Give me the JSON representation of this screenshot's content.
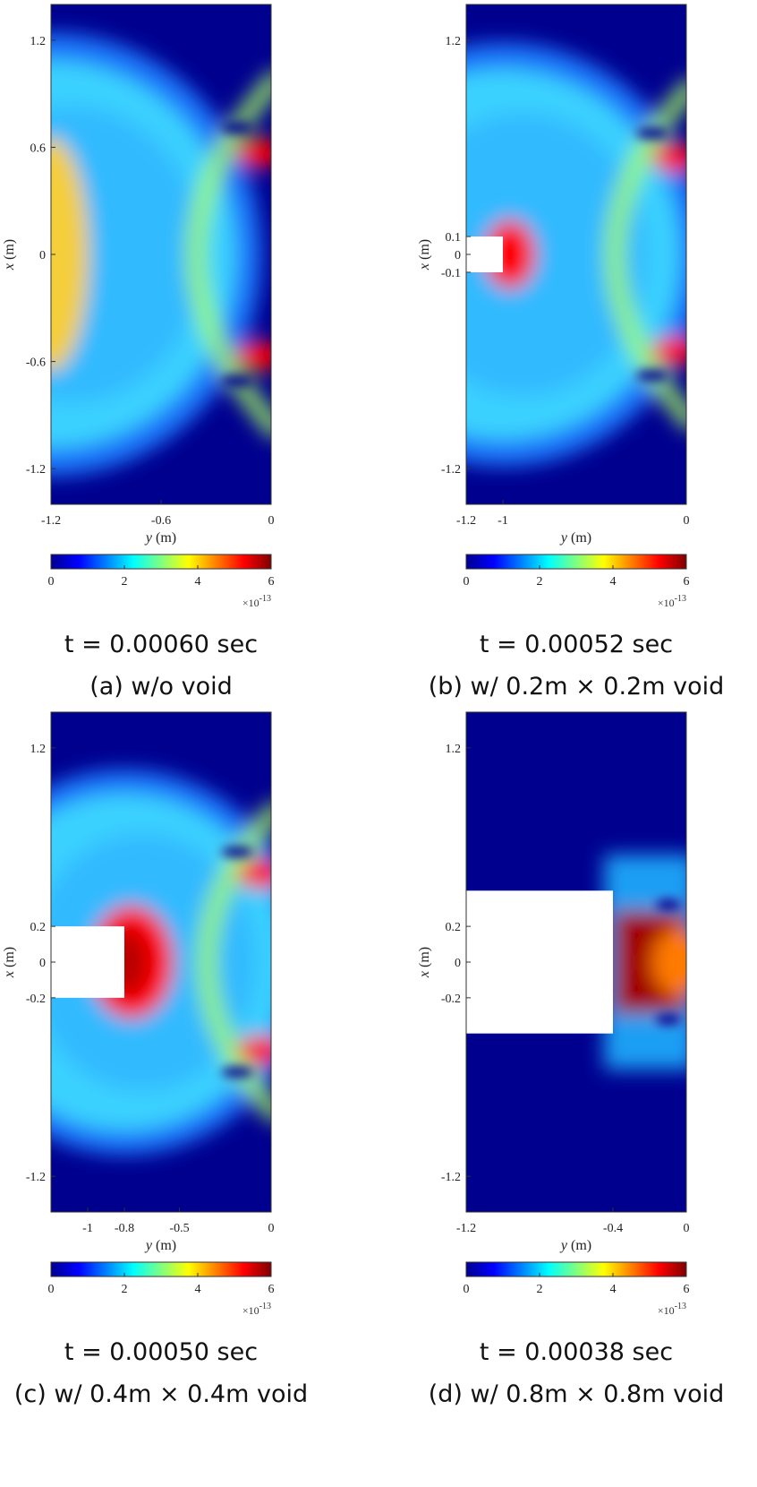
{
  "figure": {
    "colormap": "jet",
    "colors": {
      "deep_blue": "#00008f",
      "cyan": "#00ffff",
      "yellow": "#ffff00",
      "red": "#ff0000",
      "dark_red": "#800000"
    }
  },
  "chart_data": [
    {
      "type": "heatmap",
      "title": "",
      "time_label": "t = 0.00060 sec",
      "caption": "(a) w/o void",
      "xlabel_var": "y",
      "xlabel_unit": " (m)",
      "ylabel_var": "x",
      "ylabel_unit": " (m)",
      "xlim": [
        -1.2,
        0
      ],
      "ylim": [
        -1.4,
        1.4
      ],
      "x_ticks": [
        {
          "value": -1.2,
          "label": "-1.2"
        },
        {
          "value": -0.6,
          "label": "-0.6"
        },
        {
          "value": 0,
          "label": "0"
        }
      ],
      "y_ticks": [
        {
          "value": 1.2,
          "label": "1.2"
        },
        {
          "value": 0.6,
          "label": "0.6"
        },
        {
          "value": 0,
          "label": "0"
        },
        {
          "value": -0.6,
          "label": "-0.6"
        },
        {
          "value": -1.2,
          "label": "-1.2"
        }
      ],
      "void": null,
      "wave_front_radius": 1.15,
      "colorbar": {
        "min": 0,
        "max": 6,
        "ticks": [
          "0",
          "2",
          "4",
          "6"
        ],
        "scale_base": "×10",
        "scale_exp": "-13"
      }
    },
    {
      "type": "heatmap",
      "title": "",
      "time_label": "t = 0.00052 sec",
      "caption": "(b) w/ 0.2m × 0.2m void",
      "xlabel_var": "y",
      "xlabel_unit": " (m)",
      "ylabel_var": "x",
      "ylabel_unit": " (m)",
      "xlim": [
        -1.2,
        0
      ],
      "ylim": [
        -1.4,
        1.4
      ],
      "x_ticks": [
        {
          "value": -1.2,
          "label": "-1.2"
        },
        {
          "value": -1,
          "label": "-1"
        },
        {
          "value": 0,
          "label": "0"
        }
      ],
      "y_ticks": [
        {
          "value": 1.2,
          "label": "1.2"
        },
        {
          "value": 0.1,
          "label": "0.1"
        },
        {
          "value": 0,
          "label": "0"
        },
        {
          "value": -0.1,
          "label": "-0.1"
        },
        {
          "value": -1.2,
          "label": "-1.2"
        }
      ],
      "void": {
        "y_min": -1.2,
        "y_max": -1.0,
        "x_min": -0.1,
        "x_max": 0.1
      },
      "wave_front_radius": 1.1,
      "colorbar": {
        "min": 0,
        "max": 6,
        "ticks": [
          "0",
          "2",
          "4",
          "6"
        ],
        "scale_base": "×10",
        "scale_exp": "-13"
      }
    },
    {
      "type": "heatmap",
      "title": "",
      "time_label": "t = 0.00050 sec",
      "caption": "(c) w/ 0.4m × 0.4m void",
      "xlabel_var": "y",
      "xlabel_unit": " (m)",
      "ylabel_var": "x",
      "ylabel_unit": " (m)",
      "xlim": [
        -1.2,
        0
      ],
      "ylim": [
        -1.4,
        1.4
      ],
      "x_ticks": [
        {
          "value": -1,
          "label": "-1"
        },
        {
          "value": -0.8,
          "label": "-0.8"
        },
        {
          "value": -0.5,
          "label": "-0.5"
        },
        {
          "value": 0,
          "label": "0"
        }
      ],
      "y_ticks": [
        {
          "value": 1.2,
          "label": "1.2"
        },
        {
          "value": 0.2,
          "label": "0.2"
        },
        {
          "value": 0,
          "label": "0"
        },
        {
          "value": -0.2,
          "label": "-0.2"
        },
        {
          "value": -1.2,
          "label": "-1.2"
        }
      ],
      "void": {
        "y_min": -1.2,
        "y_max": -0.8,
        "x_min": -0.2,
        "x_max": 0.2
      },
      "wave_front_radius": 1.0,
      "colorbar": {
        "min": 0,
        "max": 6,
        "ticks": [
          "0",
          "2",
          "4",
          "6"
        ],
        "scale_base": "×10",
        "scale_exp": "-13"
      }
    },
    {
      "type": "heatmap",
      "title": "",
      "time_label": "t = 0.00038 sec",
      "caption": "(d) w/ 0.8m × 0.8m void",
      "xlabel_var": "y",
      "xlabel_unit": " (m)",
      "ylabel_var": "x",
      "ylabel_unit": " (m)",
      "xlim": [
        -1.2,
        0
      ],
      "ylim": [
        -1.4,
        1.4
      ],
      "x_ticks": [
        {
          "value": -1.2,
          "label": "-1.2"
        },
        {
          "value": -0.4,
          "label": "-0.4"
        },
        {
          "value": 0,
          "label": "0"
        }
      ],
      "y_ticks": [
        {
          "value": 1.2,
          "label": "1.2"
        },
        {
          "value": 0.2,
          "label": "0.2"
        },
        {
          "value": 0,
          "label": "0"
        },
        {
          "value": -0.2,
          "label": "-0.2"
        },
        {
          "value": -1.2,
          "label": "-1.2"
        }
      ],
      "void": {
        "y_min": -1.2,
        "y_max": -0.4,
        "x_min": -0.4,
        "x_max": 0.4
      },
      "wave_front_radius": 0.5,
      "colorbar": {
        "min": 0,
        "max": 6,
        "ticks": [
          "0",
          "2",
          "4",
          "6"
        ],
        "scale_base": "×10",
        "scale_exp": "-13"
      }
    }
  ]
}
